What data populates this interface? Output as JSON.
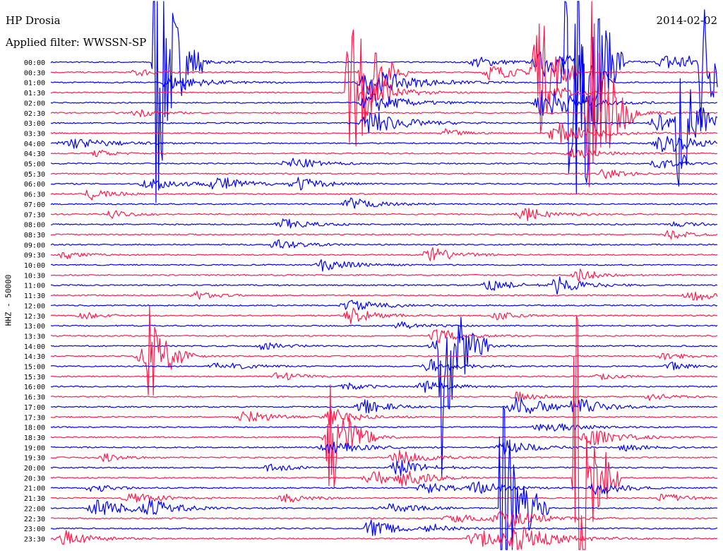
{
  "header": {
    "station": "HP Drosia",
    "filter": "Applied filter: WWSSN-SP",
    "date": "2014-02-02"
  },
  "chart_data": {
    "type": "line",
    "title": "HP Drosia",
    "subtitle": "Applied filter: WWSSN-SP",
    "ylabel": "HHZ - 50000",
    "colors": {
      "even_rows": "#0000ff",
      "odd_rows": "#ff1a4b"
    },
    "row_labels": [
      "00:00",
      "00:30",
      "01:00",
      "01:30",
      "02:00",
      "02:30",
      "03:00",
      "03:30",
      "04:00",
      "04:30",
      "05:00",
      "05:30",
      "06:00",
      "06:30",
      "07:00",
      "07:30",
      "08:00",
      "08:30",
      "09:00",
      "09:30",
      "10:00",
      "10:30",
      "11:00",
      "11:30",
      "12:00",
      "12:30",
      "13:00",
      "13:30",
      "14:00",
      "14:30",
      "15:00",
      "15:30",
      "16:00",
      "16:30",
      "17:00",
      "17:30",
      "18:00",
      "18:30",
      "19:00",
      "19:30",
      "20:00",
      "20:30",
      "21:00",
      "21:30",
      "22:00",
      "22:30",
      "23:00",
      "23:30"
    ],
    "events": [
      {
        "row": 0,
        "t": 0.74,
        "amp": 4.0,
        "dur": 0.05
      },
      {
        "row": 0,
        "t": 0.93,
        "amp": 3.0,
        "dur": 0.06
      },
      {
        "row": 0,
        "t": 0.2,
        "amp": 1.0,
        "dur": 0.04
      },
      {
        "row": 0,
        "t": 0.64,
        "amp": 1.6,
        "dur": 0.04
      },
      {
        "row": 1,
        "t": 0.13,
        "amp": 1.2,
        "dur": 0.03
      },
      {
        "row": 1,
        "t": 0.66,
        "amp": 2.4,
        "dur": 0.04
      },
      {
        "row": 2,
        "t": 0.18,
        "amp": 2.2,
        "dur": 0.05
      },
      {
        "row": 2,
        "t": 0.48,
        "amp": 4.0,
        "dur": 0.06
      },
      {
        "row": 3,
        "t": 0.5,
        "amp": 2.2,
        "dur": 0.04
      },
      {
        "row": 3,
        "t": 0.76,
        "amp": 1.8,
        "dur": 0.03
      },
      {
        "row": 4,
        "t": 0.74,
        "amp": 5.0,
        "dur": 0.05
      },
      {
        "row": 4,
        "t": 0.48,
        "amp": 3.0,
        "dur": 0.05
      },
      {
        "row": 5,
        "t": 0.13,
        "amp": 1.2,
        "dur": 0.03
      },
      {
        "row": 5,
        "t": 0.83,
        "amp": 2.6,
        "dur": 0.04
      },
      {
        "row": 6,
        "t": 0.48,
        "amp": 3.6,
        "dur": 0.05
      },
      {
        "row": 6,
        "t": 0.91,
        "amp": 2.6,
        "dur": 0.04
      },
      {
        "row": 7,
        "t": 0.59,
        "amp": 1.2,
        "dur": 0.03
      },
      {
        "row": 7,
        "t": 0.76,
        "amp": 3.0,
        "dur": 0.05
      },
      {
        "row": 8,
        "t": 0.03,
        "amp": 1.6,
        "dur": 0.06
      },
      {
        "row": 8,
        "t": 0.92,
        "amp": 3.0,
        "dur": 0.05
      },
      {
        "row": 9,
        "t": 0.07,
        "amp": 1.0,
        "dur": 0.03
      },
      {
        "row": 9,
        "t": 0.78,
        "amp": 2.0,
        "dur": 0.04
      },
      {
        "row": 10,
        "t": 0.36,
        "amp": 2.0,
        "dur": 0.04
      },
      {
        "row": 10,
        "t": 0.91,
        "amp": 1.6,
        "dur": 0.03
      },
      {
        "row": 11,
        "t": 0.83,
        "amp": 1.6,
        "dur": 0.03
      },
      {
        "row": 12,
        "t": 0.15,
        "amp": 1.8,
        "dur": 0.05
      },
      {
        "row": 12,
        "t": 0.25,
        "amp": 2.2,
        "dur": 0.04
      },
      {
        "row": 12,
        "t": 0.37,
        "amp": 2.0,
        "dur": 0.04
      },
      {
        "row": 13,
        "t": 0.06,
        "amp": 1.8,
        "dur": 0.03
      },
      {
        "row": 14,
        "t": 0.45,
        "amp": 1.8,
        "dur": 0.04
      },
      {
        "row": 15,
        "t": 0.09,
        "amp": 1.2,
        "dur": 0.03
      },
      {
        "row": 15,
        "t": 0.71,
        "amp": 2.0,
        "dur": 0.04
      },
      {
        "row": 16,
        "t": 0.35,
        "amp": 1.6,
        "dur": 0.04
      },
      {
        "row": 16,
        "t": 0.94,
        "amp": 1.0,
        "dur": 0.03
      },
      {
        "row": 17,
        "t": 0.93,
        "amp": 1.6,
        "dur": 0.03
      },
      {
        "row": 18,
        "t": 0.34,
        "amp": 1.4,
        "dur": 0.04
      },
      {
        "row": 19,
        "t": 0.57,
        "amp": 2.2,
        "dur": 0.04
      },
      {
        "row": 19,
        "t": 0.02,
        "amp": 1.2,
        "dur": 0.03
      },
      {
        "row": 20,
        "t": 0.41,
        "amp": 2.0,
        "dur": 0.04
      },
      {
        "row": 21,
        "t": 0.79,
        "amp": 2.0,
        "dur": 0.03
      },
      {
        "row": 22,
        "t": 0.66,
        "amp": 1.6,
        "dur": 0.04
      },
      {
        "row": 22,
        "t": 0.76,
        "amp": 2.4,
        "dur": 0.04
      },
      {
        "row": 23,
        "t": 0.22,
        "amp": 1.2,
        "dur": 0.03
      },
      {
        "row": 23,
        "t": 0.96,
        "amp": 1.8,
        "dur": 0.04
      },
      {
        "row": 24,
        "t": 0.45,
        "amp": 1.6,
        "dur": 0.05
      },
      {
        "row": 25,
        "t": 0.45,
        "amp": 2.2,
        "dur": 0.04
      },
      {
        "row": 25,
        "t": 0.05,
        "amp": 1.0,
        "dur": 0.03
      },
      {
        "row": 25,
        "t": 0.67,
        "amp": 1.2,
        "dur": 0.03
      },
      {
        "row": 26,
        "t": 0.52,
        "amp": 1.2,
        "dur": 0.04
      },
      {
        "row": 27,
        "t": 0.58,
        "amp": 2.0,
        "dur": 0.04
      },
      {
        "row": 28,
        "t": 0.32,
        "amp": 1.6,
        "dur": 0.03
      },
      {
        "row": 28,
        "t": 0.58,
        "amp": 2.0,
        "dur": 0.04
      },
      {
        "row": 29,
        "t": 0.14,
        "amp": 2.6,
        "dur": 0.04
      },
      {
        "row": 29,
        "t": 0.92,
        "amp": 1.2,
        "dur": 0.03
      },
      {
        "row": 30,
        "t": 0.25,
        "amp": 1.6,
        "dur": 0.04
      },
      {
        "row": 30,
        "t": 0.57,
        "amp": 2.0,
        "dur": 0.04
      },
      {
        "row": 30,
        "t": 0.93,
        "amp": 1.2,
        "dur": 0.03
      },
      {
        "row": 31,
        "t": 0.34,
        "amp": 1.4,
        "dur": 0.03
      },
      {
        "row": 31,
        "t": 0.82,
        "amp": 1.2,
        "dur": 0.03
      },
      {
        "row": 32,
        "t": 0.56,
        "amp": 1.8,
        "dur": 0.04
      },
      {
        "row": 32,
        "t": 0.44,
        "amp": 1.2,
        "dur": 0.03
      },
      {
        "row": 33,
        "t": 0.7,
        "amp": 1.4,
        "dur": 0.03
      },
      {
        "row": 33,
        "t": 0.9,
        "amp": 1.2,
        "dur": 0.03
      },
      {
        "row": 34,
        "t": 0.47,
        "amp": 2.0,
        "dur": 0.04
      },
      {
        "row": 34,
        "t": 0.7,
        "amp": 3.0,
        "dur": 0.05
      },
      {
        "row": 34,
        "t": 0.79,
        "amp": 2.4,
        "dur": 0.04
      },
      {
        "row": 35,
        "t": 0.29,
        "amp": 2.0,
        "dur": 0.04
      },
      {
        "row": 35,
        "t": 0.42,
        "amp": 2.6,
        "dur": 0.04
      },
      {
        "row": 36,
        "t": 0.74,
        "amp": 1.6,
        "dur": 0.05
      },
      {
        "row": 37,
        "t": 0.42,
        "amp": 2.6,
        "dur": 0.04
      },
      {
        "row": 37,
        "t": 0.81,
        "amp": 2.4,
        "dur": 0.05
      },
      {
        "row": 38,
        "t": 0.42,
        "amp": 1.8,
        "dur": 0.05
      },
      {
        "row": 38,
        "t": 0.68,
        "amp": 2.4,
        "dur": 0.04
      },
      {
        "row": 38,
        "t": 0.86,
        "amp": 1.2,
        "dur": 0.03
      },
      {
        "row": 39,
        "t": 0.08,
        "amp": 1.2,
        "dur": 0.03
      },
      {
        "row": 39,
        "t": 0.52,
        "amp": 2.2,
        "dur": 0.04
      },
      {
        "row": 40,
        "t": 0.33,
        "amp": 1.6,
        "dur": 0.03
      },
      {
        "row": 40,
        "t": 0.52,
        "amp": 2.6,
        "dur": 0.04
      },
      {
        "row": 41,
        "t": 0.48,
        "amp": 2.2,
        "dur": 0.04
      },
      {
        "row": 41,
        "t": 0.53,
        "amp": 2.0,
        "dur": 0.04
      },
      {
        "row": 42,
        "t": 0.06,
        "amp": 1.6,
        "dur": 0.03
      },
      {
        "row": 42,
        "t": 0.56,
        "amp": 2.0,
        "dur": 0.04
      },
      {
        "row": 42,
        "t": 0.64,
        "amp": 1.8,
        "dur": 0.04
      },
      {
        "row": 42,
        "t": 0.82,
        "amp": 2.0,
        "dur": 0.04
      },
      {
        "row": 43,
        "t": 0.12,
        "amp": 2.0,
        "dur": 0.04
      },
      {
        "row": 43,
        "t": 0.35,
        "amp": 1.6,
        "dur": 0.03
      },
      {
        "row": 43,
        "t": 0.92,
        "amp": 1.6,
        "dur": 0.03
      },
      {
        "row": 44,
        "t": 0.07,
        "amp": 2.6,
        "dur": 0.05
      },
      {
        "row": 44,
        "t": 0.15,
        "amp": 2.2,
        "dur": 0.04
      },
      {
        "row": 44,
        "t": 0.5,
        "amp": 1.6,
        "dur": 0.05
      },
      {
        "row": 45,
        "t": 0.6,
        "amp": 1.6,
        "dur": 0.04
      },
      {
        "row": 45,
        "t": 0.68,
        "amp": 3.0,
        "dur": 0.05
      },
      {
        "row": 46,
        "t": 0.48,
        "amp": 2.6,
        "dur": 0.04
      },
      {
        "row": 46,
        "t": 0.57,
        "amp": 1.2,
        "dur": 0.03
      },
      {
        "row": 47,
        "t": 0.02,
        "amp": 2.4,
        "dur": 0.04
      },
      {
        "row": 47,
        "t": 0.64,
        "amp": 2.6,
        "dur": 0.05
      },
      {
        "row": 47,
        "t": 0.7,
        "amp": 3.0,
        "dur": 0.06
      }
    ],
    "spikes": [
      {
        "row": 0,
        "t": 0.155,
        "amp": 24
      },
      {
        "row": 1,
        "t": 0.465,
        "amp": 10
      },
      {
        "row": 3,
        "t": 0.445,
        "amp": 12
      },
      {
        "row": 1,
        "t": 0.72,
        "amp": 14
      },
      {
        "row": 0,
        "t": 0.79,
        "amp": 30
      },
      {
        "row": 2,
        "t": 0.77,
        "amp": 22
      },
      {
        "row": 5,
        "t": 0.805,
        "amp": 20
      },
      {
        "row": 0,
        "t": 0.975,
        "amp": 10
      },
      {
        "row": 6,
        "t": 0.94,
        "amp": 10
      },
      {
        "row": 29,
        "t": 0.145,
        "amp": 6
      },
      {
        "row": 28,
        "t": 0.585,
        "amp": 16
      },
      {
        "row": 37,
        "t": 0.415,
        "amp": 8
      },
      {
        "row": 44,
        "t": 0.675,
        "amp": 20
      },
      {
        "row": 41,
        "t": 0.785,
        "amp": 28
      }
    ]
  }
}
